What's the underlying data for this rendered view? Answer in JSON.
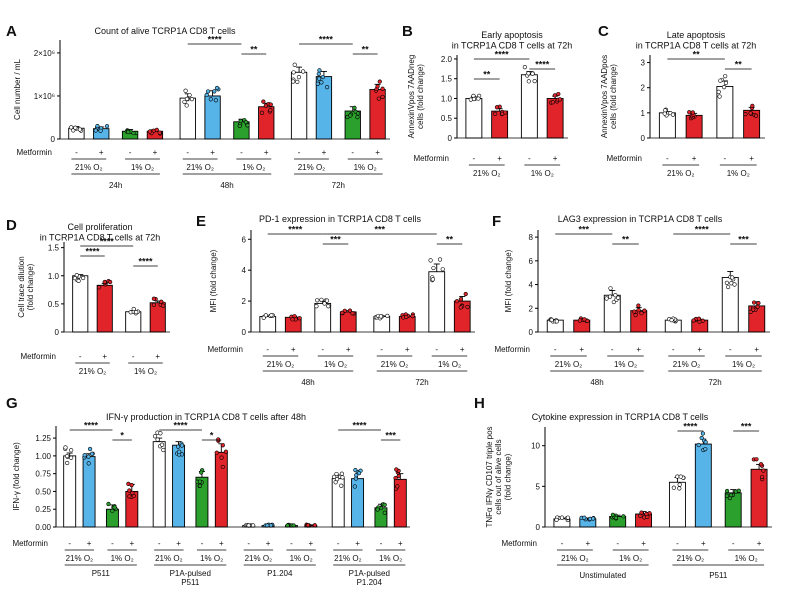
{
  "chart_data": [
    {
      "type": "bar",
      "panel": "A",
      "title": "Count of alive TCRP1A CD8 T cells",
      "ylabel": "Cell number / mL",
      "yticks": [
        "0",
        "1×10⁶",
        "2×10⁶"
      ],
      "ylim": [
        0,
        2.3
      ],
      "row_label": "Metformin",
      "treatment_labels": [
        "-",
        "+"
      ],
      "subgroups": [
        "21% O₂",
        "1% O₂"
      ],
      "groups": [
        "24h",
        "48h",
        "72h"
      ],
      "values": [
        0.25,
        0.24,
        0.18,
        0.18,
        0.95,
        1.0,
        0.4,
        0.75,
        1.55,
        1.45,
        0.65,
        1.15
      ],
      "errors": [
        0.04,
        0.04,
        0.04,
        0.04,
        0.1,
        0.12,
        0.06,
        0.08,
        0.12,
        0.12,
        0.1,
        0.12
      ],
      "bar_colors": [
        "#ffffff",
        "#56b4e9",
        "#2ca02c",
        "#e0242a",
        "#ffffff",
        "#56b4e9",
        "#2ca02c",
        "#e0242a",
        "#ffffff",
        "#56b4e9",
        "#2ca02c",
        "#e0242a"
      ],
      "significance": [
        "****",
        "**",
        "****",
        "**"
      ]
    },
    {
      "type": "bar",
      "panel": "B",
      "title": "Early apoptosis\nin TCRP1A CD8 T cells at 72h",
      "ylabel": "AnnexinVpos 7AADneg\ncells (fold change)",
      "yticks": [
        "0",
        "0.5",
        "1.0",
        "1.5",
        "2.0"
      ],
      "ylim": [
        0,
        2.1
      ],
      "row_label": "Metformin",
      "treatment_labels": [
        "-",
        "+"
      ],
      "subgroups": [
        "21% O₂",
        "1% O₂"
      ],
      "values": [
        1.0,
        0.68,
        1.6,
        1.0
      ],
      "errors": [
        0.04,
        0.06,
        0.08,
        0.06
      ],
      "bar_colors": [
        "#ffffff",
        "#e0242a",
        "#ffffff",
        "#e0242a"
      ],
      "significance": [
        "****",
        "****",
        "**"
      ]
    },
    {
      "type": "bar",
      "panel": "C",
      "title": "Late apoptosis\nin TCRP1A CD8 T cells at 72h",
      "ylabel": "AnnexinVpos 7AADpos\ncells (fold change)",
      "yticks": [
        "0",
        "1",
        "2",
        "3"
      ],
      "ylim": [
        0,
        3.3
      ],
      "row_label": "Metformin",
      "treatment_labels": [
        "-",
        "+"
      ],
      "subgroups": [
        "21% O₂",
        "1% O₂"
      ],
      "values": [
        1.0,
        0.9,
        2.05,
        1.1
      ],
      "errors": [
        0.05,
        0.08,
        0.22,
        0.12
      ],
      "bar_colors": [
        "#ffffff",
        "#e0242a",
        "#ffffff",
        "#e0242a"
      ],
      "significance": [
        "**",
        "**"
      ]
    },
    {
      "type": "bar",
      "panel": "D",
      "title": "Cell proliferation\nin TCRP1A CD8 T cells at 72h",
      "ylabel": "Cell trace dilution\n(fold change)",
      "yticks": [
        "0",
        "0.5",
        "1.0",
        "1.5"
      ],
      "ylim": [
        0,
        1.6
      ],
      "row_label": "Metformin",
      "treatment_labels": [
        "-",
        "+"
      ],
      "subgroups": [
        "21% O₂",
        "1% O₂"
      ],
      "values": [
        1.0,
        0.83,
        0.36,
        0.52
      ],
      "errors": [
        0.02,
        0.03,
        0.02,
        0.03
      ],
      "bar_colors": [
        "#ffffff",
        "#e0242a",
        "#ffffff",
        "#e0242a"
      ],
      "significance": [
        "****",
        "****",
        "****"
      ]
    },
    {
      "type": "bar",
      "panel": "E",
      "title": "PD-1 expression in TCRP1A CD8 T cells",
      "ylabel": "MFI (fold change)",
      "yticks": [
        "0",
        "2",
        "4",
        "6"
      ],
      "ylim": [
        0,
        6.6
      ],
      "row_label": "Metformin",
      "treatment_labels": [
        "-",
        "+"
      ],
      "subgroups": [
        "21% O₂",
        "1% O₂"
      ],
      "groups": [
        "48h",
        "72h"
      ],
      "values": [
        1.0,
        0.95,
        1.85,
        1.3,
        1.0,
        1.0,
        3.9,
        2.0
      ],
      "errors": [
        0.05,
        0.06,
        0.15,
        0.08,
        0.05,
        0.06,
        0.5,
        0.3
      ],
      "bar_colors": [
        "#ffffff",
        "#e0242a",
        "#ffffff",
        "#e0242a",
        "#ffffff",
        "#e0242a",
        "#ffffff",
        "#e0242a"
      ],
      "significance": [
        "****",
        "***",
        "***",
        "**"
      ]
    },
    {
      "type": "bar",
      "panel": "F",
      "title": "LAG3 expression in TCRP1A CD8 T cells",
      "ylabel": "MFI (fold change)",
      "yticks": [
        "0",
        "2",
        "4",
        "6",
        "8"
      ],
      "ylim": [
        0,
        8.6
      ],
      "row_label": "Metformin",
      "treatment_labels": [
        "-",
        "+"
      ],
      "subgroups": [
        "21% O₂",
        "1% O₂"
      ],
      "groups": [
        "48h",
        "72h"
      ],
      "values": [
        1.0,
        1.0,
        3.1,
        1.8,
        1.0,
        1.0,
        4.6,
        2.2
      ],
      "errors": [
        0.05,
        0.06,
        0.4,
        0.25,
        0.05,
        0.06,
        0.5,
        0.35
      ],
      "bar_colors": [
        "#ffffff",
        "#e0242a",
        "#ffffff",
        "#e0242a",
        "#ffffff",
        "#e0242a",
        "#ffffff",
        "#e0242a"
      ],
      "significance": [
        "***",
        "**",
        "****",
        "***"
      ]
    },
    {
      "type": "bar",
      "panel": "G",
      "title": "IFN-γ production in TCRP1A CD8 T cells after 48h",
      "ylabel": "IFN-γ (fold change)",
      "yticks": [
        "0.00",
        "0.25",
        "0.50",
        "0.75",
        "1.00",
        "1.25"
      ],
      "ylim": [
        0,
        1.42
      ],
      "row_label": "Metformin",
      "treatment_labels": [
        "-",
        "+"
      ],
      "subgroups": [
        "21% O₂",
        "1% O₂"
      ],
      "groups": [
        "P511",
        "P1A-pulsed\nP511",
        "P1.204",
        "P1A-pulsed\nP1.204"
      ],
      "values": [
        1.0,
        0.99,
        0.25,
        0.5,
        1.2,
        1.15,
        0.7,
        1.05,
        0.02,
        0.02,
        0.02,
        0.02,
        0.68,
        0.68,
        0.27,
        0.67
      ],
      "errors": [
        0.04,
        0.04,
        0.06,
        0.1,
        0.05,
        0.05,
        0.08,
        0.12,
        0.01,
        0.01,
        0.01,
        0.01,
        0.05,
        0.06,
        0.05,
        0.08
      ],
      "bar_colors": [
        "#ffffff",
        "#56b4e9",
        "#2ca02c",
        "#e0242a",
        "#ffffff",
        "#56b4e9",
        "#2ca02c",
        "#e0242a",
        "#ffffff",
        "#56b4e9",
        "#2ca02c",
        "#e0242a",
        "#ffffff",
        "#56b4e9",
        "#2ca02c",
        "#e0242a"
      ],
      "significance": [
        "****",
        "*",
        "****",
        "*",
        "****",
        "***"
      ]
    },
    {
      "type": "bar",
      "panel": "H",
      "title": "Cytokine expression in TCRP1A CD8 T cells",
      "ylabel": "TNFα IFNγ CD107 triple pos\ncells out of alive cells\n(fold change)",
      "yticks": [
        "0",
        "5",
        "10"
      ],
      "ylim": [
        0,
        12.3
      ],
      "row_label": "Metformin",
      "treatment_labels": [
        "-",
        "+"
      ],
      "subgroups": [
        "21% O₂",
        "1% O₂"
      ],
      "groups": [
        "Unstimulated",
        "P511"
      ],
      "values": [
        1.0,
        1.0,
        1.3,
        1.6,
        5.5,
        10.2,
        4.2,
        7.1
      ],
      "errors": [
        0.1,
        0.1,
        0.15,
        0.3,
        0.6,
        0.6,
        0.4,
        0.6
      ],
      "bar_colors": [
        "#ffffff",
        "#56b4e9",
        "#2ca02c",
        "#e0242a",
        "#ffffff",
        "#56b4e9",
        "#2ca02c",
        "#e0242a"
      ],
      "significance": [
        "****",
        "***"
      ]
    }
  ]
}
